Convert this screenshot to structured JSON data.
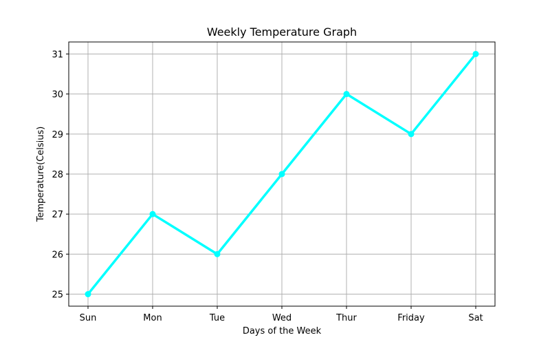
{
  "chart_data": {
    "type": "line",
    "title": "Weekly Temperature Graph",
    "xlabel": "Days of the Week",
    "ylabel": "Temperature(Celsius)",
    "categories": [
      "Sun",
      "Mon",
      "Tue",
      "Wed",
      "Thur",
      "Friday",
      "Sat"
    ],
    "series": [
      {
        "values": [
          25,
          27,
          26,
          28,
          30,
          29,
          31
        ]
      }
    ],
    "ylim": [
      24.7,
      31.3
    ],
    "yticks": [
      25,
      26,
      27,
      28,
      29,
      30,
      31
    ],
    "grid": true,
    "marker": "circle",
    "colors": {
      "line": "#00ffff",
      "grid": "#b0b0b0",
      "axes": "#000000"
    }
  }
}
